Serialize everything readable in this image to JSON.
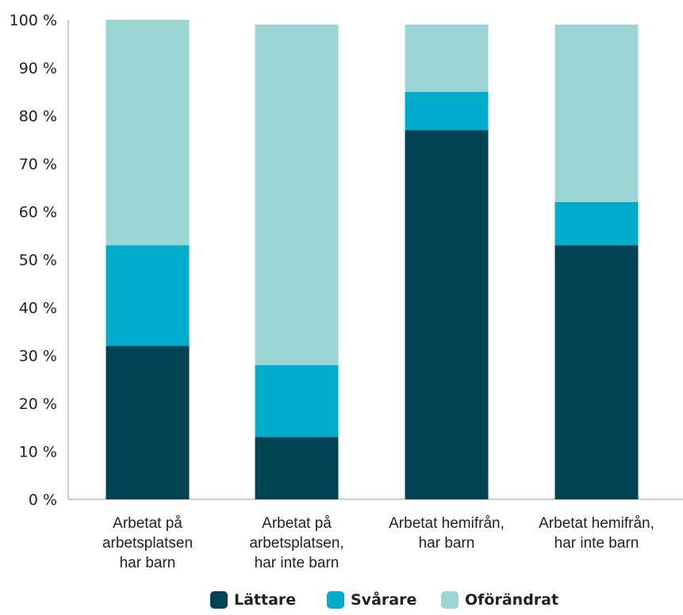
{
  "chart_data": {
    "type": "bar",
    "stacked": true,
    "categories": [
      [
        "Arbetat på",
        "arbetsplatsen",
        "har barn"
      ],
      [
        "Arbetat på",
        "arbetsplatsen,",
        "har inte barn"
      ],
      [
        "Arbetat hemifrån,",
        "har barn"
      ],
      [
        "Arbetat hemifrån,",
        "har inte barn"
      ]
    ],
    "series": [
      {
        "name": "Lättare",
        "color": "#004355",
        "values": [
          32,
          13,
          77,
          53
        ]
      },
      {
        "name": "Svårare",
        "color": "#00abcc",
        "values": [
          21,
          15,
          8,
          9
        ]
      },
      {
        "name": "Oförändrat",
        "color": "#9bd6d4",
        "values": [
          47,
          71,
          14,
          37
        ]
      }
    ],
    "yticks": [
      "0 %",
      "10 %",
      "20 %",
      "30 %",
      "40 %",
      "50 %",
      "60 %",
      "70 %",
      "80 %",
      "90 %",
      "100 %"
    ],
    "ylim": [
      0,
      100
    ],
    "grid": false,
    "legend_position": "bottom"
  }
}
